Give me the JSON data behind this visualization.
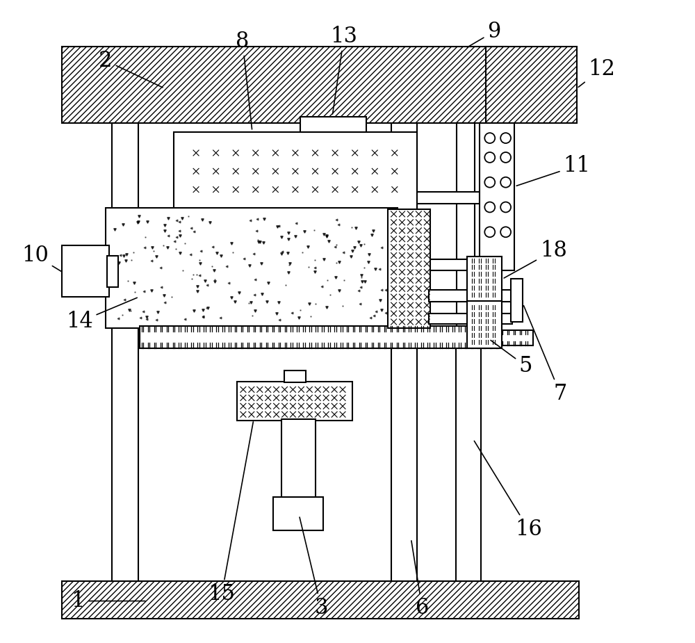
{
  "bg_color": "#ffffff",
  "line_color": "#000000",
  "fig_width": 10.0,
  "fig_height": 9.25,
  "dpi": 100,
  "labels": {
    "1": [
      110,
      58,
      210,
      58
    ],
    "2": [
      150,
      840,
      235,
      800
    ],
    "3": [
      462,
      48,
      430,
      182
    ],
    "5": [
      758,
      398,
      705,
      437
    ],
    "6": [
      608,
      48,
      592,
      148
    ],
    "7": [
      808,
      358,
      754,
      488
    ],
    "8": [
      348,
      868,
      362,
      738
    ],
    "9": [
      712,
      882,
      671,
      858
    ],
    "10": [
      48,
      558,
      89,
      533
    ],
    "11": [
      832,
      688,
      742,
      658
    ],
    "12": [
      868,
      828,
      832,
      800
    ],
    "13": [
      495,
      875,
      478,
      760
    ],
    "14": [
      112,
      462,
      198,
      498
    ],
    "15": [
      318,
      68,
      364,
      320
    ],
    "16": [
      762,
      162,
      682,
      292
    ],
    "18": [
      798,
      565,
      724,
      524
    ]
  }
}
